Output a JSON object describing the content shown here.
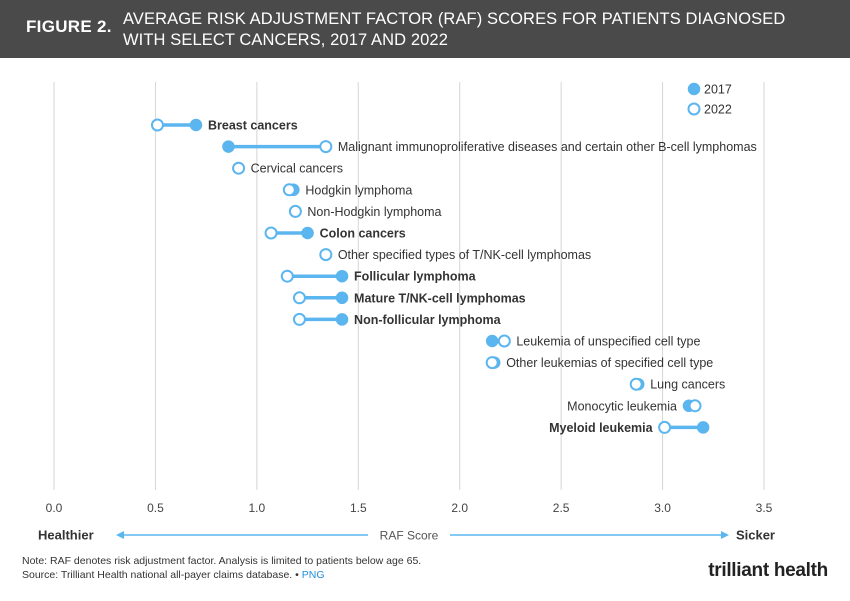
{
  "header": {
    "figure_label": "FIGURE 2.",
    "title_line1": "AVERAGE RISK ADJUSTMENT FACTOR (RAF) SCORES FOR PATIENTS DIAGNOSED",
    "title_line2": "WITH SELECT CANCERS, 2017 AND 2022"
  },
  "chart_data": {
    "type": "dumbbell",
    "xlim": [
      0,
      3.5
    ],
    "x_ticks": [
      "0.0",
      "0.5",
      "1.0",
      "1.5",
      "2.0",
      "2.5",
      "3.0",
      "3.5"
    ],
    "grid": true,
    "legend_position": "top-right",
    "series": [
      {
        "name": "2017",
        "marker": "filled"
      },
      {
        "name": "2022",
        "marker": "open"
      }
    ],
    "rows": [
      {
        "label": "Breast cancers",
        "v2017": 0.7,
        "v2022": 0.51,
        "bold": true
      },
      {
        "label": "Malignant immunoproliferative diseases and certain other B-cell lymphomas",
        "v2017": 0.86,
        "v2022": 1.34,
        "bold": false
      },
      {
        "label": "Cervical cancers",
        "v2017": 0.91,
        "v2022": 0.91,
        "bold": false
      },
      {
        "label": "Hodgkin lymphoma",
        "v2017": 1.18,
        "v2022": 1.16,
        "bold": false
      },
      {
        "label": "Non-Hodgkin lymphoma",
        "v2017": 1.19,
        "v2022": 1.19,
        "bold": false
      },
      {
        "label": "Colon cancers",
        "v2017": 1.25,
        "v2022": 1.07,
        "bold": true
      },
      {
        "label": "Other specified types of T/NK-cell lymphomas",
        "v2017": 1.34,
        "v2022": 1.34,
        "bold": false
      },
      {
        "label": "Follicular lymphoma",
        "v2017": 1.42,
        "v2022": 1.15,
        "bold": true
      },
      {
        "label": "Mature T/NK-cell lymphomas",
        "v2017": 1.42,
        "v2022": 1.21,
        "bold": true
      },
      {
        "label": "Non-follicular lymphoma",
        "v2017": 1.42,
        "v2022": 1.21,
        "bold": true
      },
      {
        "label": "Leukemia of unspecified cell type",
        "v2017": 2.16,
        "v2022": 2.22,
        "bold": false
      },
      {
        "label": "Other leukemias of specified cell type",
        "v2017": 2.17,
        "v2022": 2.16,
        "bold": false
      },
      {
        "label": "Lung cancers",
        "v2017": 2.88,
        "v2022": 2.87,
        "bold": false
      },
      {
        "label": "Monocytic leukemia",
        "v2017": 3.13,
        "v2022": 3.16,
        "bold": false,
        "label_side": "left"
      },
      {
        "label": "Myeloid leukemia",
        "v2017": 3.2,
        "v2022": 3.01,
        "bold": true,
        "label_side": "left"
      }
    ],
    "scale": {
      "left": "Healthier",
      "middle": "RAF Score",
      "right": "Sicker"
    },
    "colors": {
      "marker": "#5bb5ef",
      "grid": "#d6d6d6",
      "arrow": "#5bb5ef"
    }
  },
  "footer": {
    "note": "Note: RAF denotes risk adjustment factor. Analysis is limited to patients below age 65.",
    "source": "Source: Trilliant Health national all-payer claims database.",
    "separator": "•",
    "png": "PNG",
    "logo": "trilliant health"
  }
}
